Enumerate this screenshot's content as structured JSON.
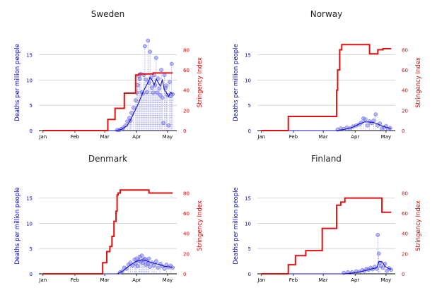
{
  "figure": {
    "panel_count": 4
  },
  "chart_data": [
    {
      "type": "line",
      "title": "Sweden",
      "ylabel_left": "Deaths per million people",
      "ylabel_right": "Stringency Index",
      "xticks": [
        "Jan",
        "Feb",
        "Mar",
        "Apr",
        "May"
      ],
      "xtick_days": [
        0,
        31,
        60,
        91,
        121
      ],
      "ylim_left": [
        0,
        19
      ],
      "ylim_right": [
        0,
        95
      ],
      "yticks_left": [
        0,
        5,
        10,
        15
      ],
      "yticks_right": [
        0,
        20,
        40,
        60,
        80
      ],
      "grid": "horizontal",
      "colors": {
        "deaths": "#1010cc",
        "points": "#7b7bf0",
        "stringency": "#e01010"
      },
      "deaths_daily": {
        "x": [
          72,
          74,
          76,
          78,
          80,
          82,
          84,
          85,
          86,
          88,
          90,
          91,
          92,
          93,
          94,
          95,
          96,
          97,
          98,
          99,
          100,
          101,
          102,
          103,
          104,
          105,
          106,
          107,
          108,
          109,
          110,
          111,
          112,
          113,
          114,
          115,
          116,
          117,
          118,
          119,
          120,
          121,
          122,
          123,
          124,
          125,
          126
        ],
        "y": [
          0.1,
          0.1,
          0.3,
          0.5,
          1.0,
          1.8,
          2.5,
          2.0,
          3.5,
          4.5,
          6.0,
          7.5,
          9.0,
          10.8,
          10.2,
          11.2,
          7.6,
          7.3,
          11.0,
          16.7,
          10.1,
          7.6,
          17.8,
          9.5,
          15.6,
          10.5,
          8.5,
          7.5,
          11.0,
          9.0,
          14.4,
          7.5,
          10.3,
          8.3,
          7.0,
          12.0,
          6.5,
          1.5,
          11.0,
          8.4,
          8.9,
          7.0,
          1.0,
          9.6,
          6.8,
          13.2,
          7.2
        ]
      },
      "deaths_avg": {
        "x": [
          20,
          70,
          76,
          82,
          86,
          90,
          94,
          98,
          102,
          104,
          106,
          108,
          110,
          112,
          114,
          116,
          118,
          120,
          122,
          124,
          126
        ],
        "y": [
          0,
          0,
          0.2,
          1.0,
          2.5,
          4.2,
          6.0,
          8.0,
          9.5,
          10.5,
          10.0,
          9.0,
          10.2,
          9.5,
          8.8,
          10.0,
          8.0,
          7.5,
          6.7,
          7.6,
          7.2
        ]
      },
      "stringency": {
        "x": [
          0,
          63,
          63,
          70,
          70,
          79,
          79,
          90,
          90,
          93,
          93,
          107,
          107,
          126
        ],
        "y": [
          0,
          0,
          11,
          11,
          22,
          22,
          37,
          37,
          55,
          55,
          56,
          56,
          57,
          57
        ]
      }
    },
    {
      "type": "line",
      "title": "Norway",
      "ylabel_left": "Deaths per million people",
      "ylabel_right": "Stringency Index",
      "xticks": [
        "Jan",
        "Feb",
        "Mar",
        "Apr",
        "May"
      ],
      "xtick_days": [
        0,
        31,
        60,
        91,
        121
      ],
      "ylim_left": [
        0,
        19
      ],
      "ylim_right": [
        0,
        95
      ],
      "yticks_left": [
        0,
        5,
        10,
        15
      ],
      "yticks_right": [
        0,
        20,
        40,
        60,
        80
      ],
      "grid": "horizontal",
      "colors": {
        "deaths": "#1010cc",
        "points": "#7b7bf0",
        "stringency": "#e01010"
      },
      "deaths_daily": {
        "x": [
          74,
          77,
          80,
          83,
          86,
          89,
          92,
          95,
          97,
          99,
          101,
          103,
          105,
          107,
          109,
          111,
          113,
          115,
          117,
          119,
          121,
          123,
          125
        ],
        "y": [
          0.2,
          0.4,
          0.3,
          0.6,
          0.4,
          0.8,
          1.0,
          1.2,
          1.6,
          2.4,
          2.2,
          1.0,
          1.8,
          1.5,
          2.0,
          3.2,
          1.0,
          1.4,
          0.4,
          0.6,
          0.9,
          0.3,
          0.5
        ]
      },
      "deaths_avg": {
        "x": [
          20,
          72,
          80,
          88,
          94,
          100,
          104,
          108,
          112,
          116,
          120,
          124,
          126
        ],
        "y": [
          0,
          0,
          0.2,
          0.6,
          1.2,
          1.7,
          1.7,
          1.6,
          1.4,
          1.0,
          0.7,
          0.5,
          0.4
        ]
      },
      "stringency": {
        "x": [
          0,
          26,
          26,
          73,
          73,
          74,
          74,
          76,
          76,
          78,
          78,
          105,
          105,
          113,
          113,
          118,
          118,
          126
        ],
        "y": [
          0,
          0,
          14,
          14,
          40,
          40,
          60,
          60,
          80,
          80,
          85,
          85,
          76,
          76,
          80,
          80,
          81,
          81
        ]
      }
    },
    {
      "type": "line",
      "title": "Denmark",
      "ylabel_left": "Deaths per million people",
      "ylabel_right": "Stringency Index",
      "xticks": [
        "Jan",
        "Feb",
        "Mar",
        "Apr",
        "May"
      ],
      "xtick_days": [
        0,
        31,
        60,
        91,
        121
      ],
      "ylim_left": [
        0,
        19
      ],
      "ylim_right": [
        0,
        95
      ],
      "yticks_left": [
        0,
        5,
        10,
        15
      ],
      "yticks_right": [
        0,
        20,
        40,
        60,
        80
      ],
      "grid": "horizontal",
      "colors": {
        "deaths": "#1010cc",
        "points": "#7b7bf0",
        "stringency": "#e01010"
      },
      "deaths_daily": {
        "x": [
          75,
          77,
          79,
          81,
          83,
          85,
          87,
          89,
          90,
          91,
          92,
          93,
          94,
          95,
          96,
          97,
          98,
          99,
          100,
          101,
          102,
          103,
          104,
          106,
          108,
          110,
          112,
          114,
          116,
          118,
          120,
          122,
          124,
          126
        ],
        "y": [
          0.3,
          0.5,
          1.2,
          1.0,
          1.8,
          2.2,
          1.6,
          2.8,
          2.0,
          3.0,
          1.5,
          2.6,
          3.4,
          2.4,
          3.6,
          2.2,
          2.8,
          3.0,
          1.8,
          2.6,
          2.0,
          3.0,
          1.4,
          2.2,
          1.6,
          2.5,
          1.2,
          2.0,
          1.5,
          1.0,
          1.8,
          1.3,
          1.6,
          1.2
        ]
      },
      "deaths_avg": {
        "x": [
          20,
          72,
          78,
          84,
          90,
          96,
          100,
          106,
          112,
          118,
          122,
          126
        ],
        "y": [
          0,
          0,
          0.6,
          1.6,
          2.4,
          2.8,
          2.6,
          2.2,
          1.9,
          1.5,
          1.4,
          1.3
        ]
      },
      "stringency": {
        "x": [
          0,
          58,
          58,
          62,
          62,
          65,
          65,
          67,
          67,
          69,
          69,
          71,
          71,
          72,
          72,
          73,
          73,
          75,
          75,
          103,
          103,
          126
        ],
        "y": [
          0,
          0,
          11,
          11,
          22,
          22,
          27,
          27,
          37,
          37,
          52,
          52,
          62,
          62,
          78,
          78,
          80,
          80,
          83,
          83,
          80,
          80
        ]
      }
    },
    {
      "type": "line",
      "title": "Finland",
      "ylabel_left": "Deaths per million people",
      "ylabel_right": "Stringency Index",
      "xticks": [
        "Jan",
        "Feb",
        "Mar",
        "Apr",
        "May"
      ],
      "xtick_days": [
        0,
        31,
        60,
        91,
        121
      ],
      "ylim_left": [
        0,
        19
      ],
      "ylim_right": [
        0,
        95
      ],
      "yticks_left": [
        0,
        5,
        10,
        15
      ],
      "yticks_right": [
        0,
        20,
        40,
        60,
        80
      ],
      "grid": "horizontal",
      "colors": {
        "deaths": "#1010cc",
        "points": "#7b7bf0",
        "stringency": "#e01010"
      },
      "deaths_daily": {
        "x": [
          80,
          84,
          88,
          92,
          95,
          98,
          100,
          102,
          104,
          106,
          108,
          110,
          112,
          113,
          114,
          115,
          116,
          118,
          120,
          122,
          124,
          126
        ],
        "y": [
          0.2,
          0.3,
          0.3,
          0.5,
          0.4,
          0.7,
          0.6,
          1.0,
          0.8,
          1.2,
          0.9,
          1.4,
          1.0,
          7.7,
          4.0,
          2.2,
          1.5,
          1.2,
          2.0,
          0.6,
          1.1,
          0.8
        ]
      },
      "deaths_avg": {
        "x": [
          20,
          80,
          90,
          96,
          102,
          108,
          112,
          114,
          117,
          120,
          124,
          126
        ],
        "y": [
          0,
          0,
          0.2,
          0.4,
          0.7,
          1.0,
          1.2,
          2.4,
          2.4,
          1.5,
          1.0,
          0.9
        ]
      },
      "stringency": {
        "x": [
          0,
          26,
          26,
          33,
          33,
          43,
          43,
          59,
          59,
          73,
          73,
          77,
          77,
          81,
          81,
          117,
          117,
          126
        ],
        "y": [
          0,
          0,
          9,
          9,
          18,
          18,
          23,
          23,
          45,
          45,
          68,
          68,
          71,
          71,
          75,
          75,
          61,
          61
        ]
      }
    }
  ]
}
